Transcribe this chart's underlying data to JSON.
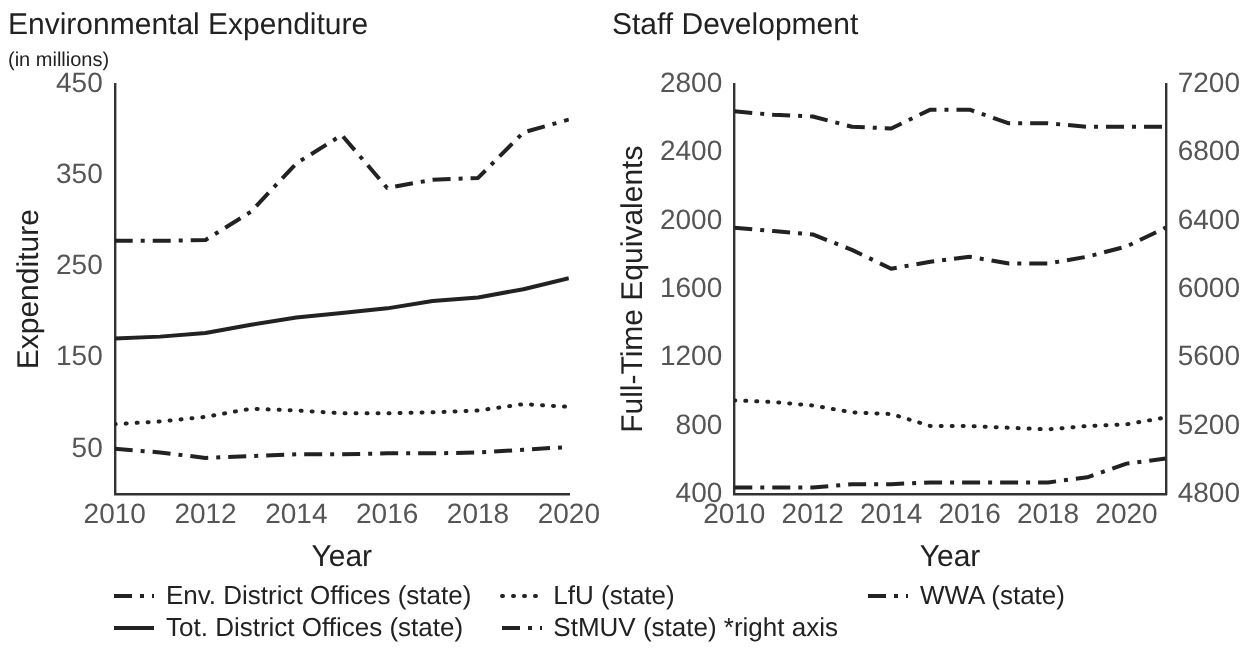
{
  "chart_data": [
    {
      "type": "line",
      "title": "Environmental Expenditure",
      "subtitle": "(in millions)",
      "xlabel": "Year",
      "ylabel": "Expenditure",
      "xlim": [
        2010,
        2020
      ],
      "xticks": [
        2010,
        2012,
        2014,
        2016,
        2018,
        2020
      ],
      "ylim": [
        0,
        450
      ],
      "yticks": [
        50,
        150,
        250,
        350,
        450
      ],
      "legend": "bottom",
      "grid": false,
      "x": [
        2010,
        2011,
        2012,
        2013,
        2014,
        2015,
        2016,
        2017,
        2018,
        2019,
        2020
      ],
      "series": [
        {
          "name": "Env. District Offices (state)",
          "color": "#222222",
          "line_style": "dashed",
          "values": [
            50,
            46,
            40,
            42,
            44,
            44,
            45,
            45,
            46,
            49,
            52
          ]
        },
        {
          "name": "Tot. District Offices (state)",
          "color": "#222222",
          "line_style": "solid",
          "values": [
            171,
            173,
            177,
            186,
            194,
            199,
            204,
            212,
            216,
            225,
            237
          ]
        },
        {
          "name": "LfU (state)",
          "color": "#222222",
          "line_style": "dotted",
          "values": [
            77,
            80,
            85,
            94,
            92,
            89,
            89,
            90,
            92,
            99,
            96
          ]
        },
        {
          "name": "StMUV (state) *right axis",
          "color": "#222222",
          "line_style": "dashed",
          "values": [
            278,
            278,
            279,
            310,
            363,
            394,
            336,
            345,
            347,
            397,
            411
          ]
        }
      ]
    },
    {
      "type": "line",
      "title": "Staff Development",
      "xlabel": "Year",
      "ylabel": "Full-Time Equivalents",
      "xlim": [
        2010,
        2021
      ],
      "xticks": [
        2010,
        2012,
        2014,
        2016,
        2018,
        2020
      ],
      "ylim": [
        400,
        2800
      ],
      "yticks": [
        400,
        800,
        1200,
        1600,
        2000,
        2400,
        2800
      ],
      "y2lim": [
        4800,
        7200
      ],
      "y2ticks": [
        4800,
        5200,
        5600,
        6000,
        6400,
        6800,
        7200
      ],
      "legend": "bottom",
      "grid": false,
      "x": [
        2010,
        2011,
        2012,
        2013,
        2014,
        2015,
        2016,
        2017,
        2018,
        2019,
        2020,
        2021
      ],
      "series": [
        {
          "name": "Env. District Offices (state)",
          "color": "#222222",
          "line_style": "dashed",
          "values": [
            2640,
            2620,
            2610,
            2550,
            2540,
            2650,
            2650,
            2570,
            2570,
            2550,
            2550,
            2550
          ]
        },
        {
          "name": "StMUV (state) *right axis",
          "color": "#222222",
          "line_style": "dashed",
          "axis": "y2",
          "values": [
            6360,
            6340,
            6320,
            6230,
            6120,
            6160,
            6190,
            6150,
            6150,
            6190,
            6250,
            6360
          ]
        },
        {
          "name": "LfU (state)",
          "color": "#222222",
          "line_style": "dotted",
          "values": [
            950,
            940,
            920,
            880,
            870,
            800,
            800,
            790,
            780,
            800,
            810,
            850
          ]
        },
        {
          "name": "WWA (state)",
          "color": "#222222",
          "line_style": "dashed",
          "values": [
            440,
            440,
            440,
            460,
            460,
            470,
            470,
            470,
            470,
            500,
            580,
            610
          ]
        }
      ]
    }
  ]
}
